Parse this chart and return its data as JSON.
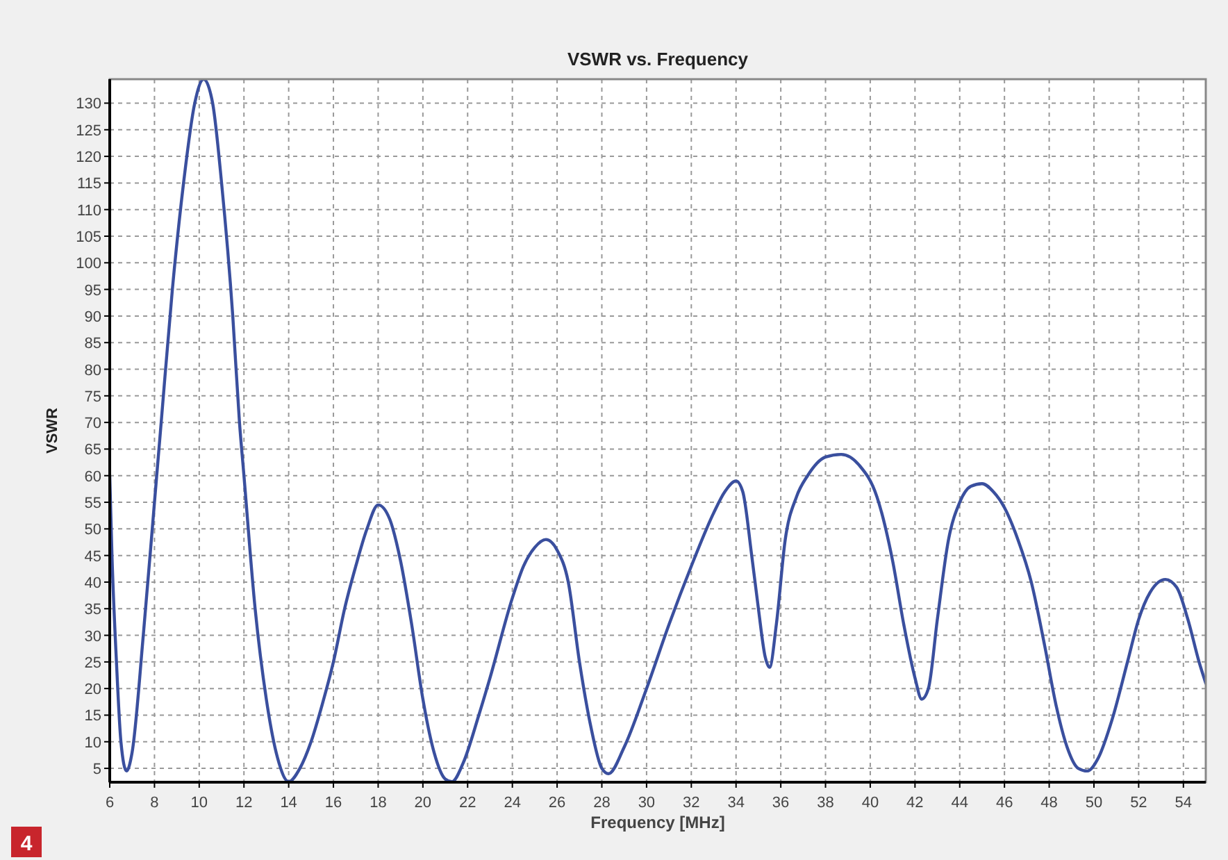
{
  "chart_data": {
    "type": "line",
    "title": "VSWR vs. Frequency",
    "xlabel": "Frequency [MHz]",
    "ylabel": "VSWR",
    "annotations": [
      "4"
    ],
    "xlim": [
      6,
      55
    ],
    "ylim": [
      2.4,
      134.5
    ],
    "xticks": [
      6,
      8,
      10,
      12,
      14,
      16,
      18,
      20,
      22,
      24,
      26,
      28,
      30,
      32,
      34,
      36,
      38,
      40,
      42,
      44,
      46,
      48,
      50,
      52,
      54
    ],
    "yticks": [
      5,
      10,
      15,
      20,
      25,
      30,
      35,
      40,
      45,
      50,
      55,
      60,
      65,
      70,
      75,
      80,
      85,
      90,
      95,
      100,
      105,
      110,
      115,
      120,
      125,
      130
    ],
    "grid": true,
    "line_style": "solid",
    "marker": "none",
    "series": [
      {
        "color": "#3a4f9e",
        "x": [
          6,
          6.1,
          6.3,
          6.5,
          6.75,
          7,
          7.5,
          8,
          8.3,
          8.8,
          9.3,
          9.8,
          10.2,
          10.6,
          11,
          11.5,
          11.8,
          12,
          12.5,
          13,
          13.5,
          14,
          14.5,
          15,
          15.5,
          16,
          16.5,
          17,
          17.5,
          18,
          18.5,
          19,
          19.5,
          20,
          20.5,
          21,
          21.3,
          21.8,
          22.5,
          23,
          24,
          24.5,
          25,
          25.5,
          26,
          26.5,
          27,
          27.5,
          28,
          28.3,
          29,
          30,
          31,
          32,
          33,
          33.5,
          34,
          34.3,
          34.7,
          35,
          35.3,
          35.5,
          35.8,
          36.2,
          36.7,
          37.2,
          38,
          38.7,
          39.5,
          40.3,
          41,
          41.5,
          42,
          42.3,
          42.6,
          43,
          43.5,
          44,
          44.5,
          45,
          45.5,
          46,
          46.6,
          47.2,
          47.8,
          48.3,
          48.8,
          49.3,
          49.7,
          50.2,
          50.8,
          51.5,
          52,
          52.5,
          53.2,
          53.7,
          54.2,
          54.7,
          55
        ],
        "values": [
          60,
          45,
          25,
          10,
          4.5,
          8,
          30,
          55,
          70,
          95,
          115,
          130,
          134.5,
          130,
          115,
          90,
          70,
          60,
          35,
          18,
          7,
          2.5,
          5,
          10,
          17,
          25,
          35,
          43,
          50,
          54.5,
          52,
          44,
          32,
          18,
          8,
          3,
          2.5,
          6,
          15,
          22,
          37,
          43,
          46.5,
          48,
          46,
          40,
          25,
          13,
          5,
          4,
          9,
          20,
          32,
          43,
          53,
          57,
          59,
          57,
          45,
          35,
          26,
          24,
          32,
          48,
          56,
          60,
          63.5,
          64,
          62,
          56,
          44,
          32,
          22,
          18,
          20,
          33,
          48,
          55,
          58,
          58.5,
          57,
          54,
          48,
          40,
          28,
          17,
          9,
          5,
          4.5,
          7,
          14,
          25,
          33,
          38,
          40.5,
          39,
          33,
          25,
          21
        ]
      }
    ]
  }
}
